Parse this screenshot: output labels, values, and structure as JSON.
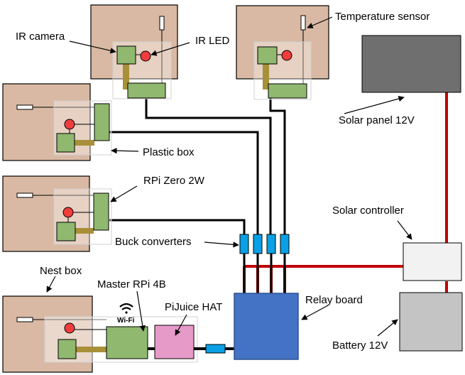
{
  "labels": {
    "ir_camera": "IR camera",
    "ir_led": "IR LED",
    "temperature_sensor": "Temperature sensor",
    "solar_panel": "Solar panel 12V",
    "plastic_box": "Plastic box",
    "rpi_zero": "RPi Zero 2W",
    "solar_controller": "Solar controller",
    "buck_converters": "Buck converters",
    "nest_box": "Nest box",
    "master_rpi": "Master RPi 4B",
    "pijuice": "PiJuice HAT",
    "relay_board": "Relay board",
    "battery": "Battery 12V",
    "wifi": "Wi-Fi"
  },
  "colors": {
    "nest_box": "#d9b9a3",
    "board_green": "#90b86f",
    "led_red": "#ef3d3d",
    "mount_brown": "#a89038",
    "relay_blue": "#4472c4",
    "buck_blue": "#0aa0e6",
    "power_red": "#c00000",
    "solar_panel": "#6f6f6f",
    "battery": "#c4c4c4",
    "pijuice_pink": "#e69ac8"
  }
}
